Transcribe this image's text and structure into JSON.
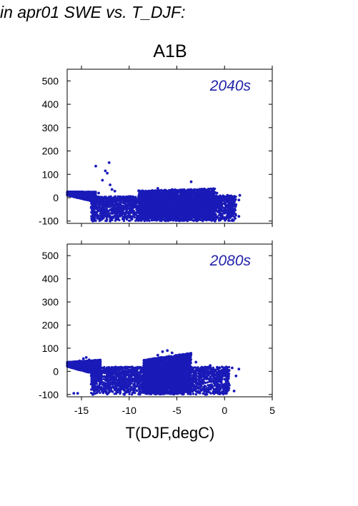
{
  "header": {
    "text": "in apr01 SWE vs. T_DJF:"
  },
  "scenario": "A1B",
  "colors": {
    "points": "#1a1ab8",
    "period_label": "#2222aa"
  },
  "chart_data": [
    {
      "type": "scatter",
      "label": "2040s",
      "xlabel": "T(DJF,degC)",
      "ylabel": "",
      "xlim": [
        -16.5,
        5
      ],
      "ylim": [
        -110,
        550
      ],
      "xticks": [
        -15,
        -10,
        -5,
        0,
        5
      ],
      "yticks": [
        -100,
        0,
        100,
        200,
        300,
        400,
        500
      ],
      "grid": false,
      "show_xtick_labels": false,
      "points": [
        [
          -16.2,
          22
        ],
        [
          -15.8,
          22
        ],
        [
          -15.2,
          23
        ],
        [
          -14.8,
          24
        ],
        [
          -14.3,
          22
        ],
        [
          -13.5,
          135
        ],
        [
          -13.2,
          20
        ],
        [
          -12.8,
          75
        ],
        [
          -12.5,
          115
        ],
        [
          -12.3,
          105
        ],
        [
          -12.1,
          150
        ],
        [
          -12.0,
          55
        ],
        [
          -11.8,
          35
        ],
        [
          -11.5,
          28
        ],
        [
          -13.8,
          -100
        ],
        [
          -12.0,
          -100
        ],
        [
          -9.0,
          30
        ],
        [
          -7.0,
          40
        ],
        [
          -5.5,
          35
        ],
        [
          -3.5,
          68
        ],
        [
          -2.5,
          30
        ],
        [
          -1.5,
          25
        ],
        [
          -0.8,
          20
        ],
        [
          0.3,
          10
        ],
        [
          1.5,
          -10
        ],
        [
          1.6,
          10
        ],
        [
          1.2,
          -30
        ],
        [
          0.5,
          -60
        ],
        [
          1.5,
          -80
        ],
        [
          -1.0,
          -100
        ]
      ],
      "dense_regions": [
        {
          "x": [
            -14.0,
            1.2
          ],
          "y_bottom": [
            -100,
            -100
          ],
          "y_top": [
            5,
            10
          ]
        },
        {
          "x": [
            -9.0,
            -1.0
          ],
          "y_bottom": [
            -100,
            -100
          ],
          "y_top": [
            30,
            40
          ]
        },
        {
          "x": [
            -16.5,
            -13.5
          ],
          "y_bottom": [
            10,
            -20
          ],
          "y_top": [
            26,
            25
          ]
        }
      ]
    },
    {
      "type": "scatter",
      "label": "2080s",
      "xlabel": "T(DJF,degC)",
      "ylabel": "",
      "xlim": [
        -16.5,
        5
      ],
      "ylim": [
        -110,
        550
      ],
      "xticks": [
        -15,
        -10,
        -5,
        0,
        5
      ],
      "yticks": [
        -100,
        0,
        100,
        200,
        300,
        400,
        500
      ],
      "grid": false,
      "show_xtick_labels": true,
      "points": [
        [
          -16.2,
          35
        ],
        [
          -15.8,
          40
        ],
        [
          -15.2,
          45
        ],
        [
          -14.8,
          55
        ],
        [
          -14.5,
          60
        ],
        [
          -14.2,
          50
        ],
        [
          -15.8,
          -95
        ],
        [
          -15.4,
          -95
        ],
        [
          -13.8,
          -100
        ],
        [
          -6.5,
          85
        ],
        [
          -6.0,
          90
        ],
        [
          -5.5,
          80
        ],
        [
          -7.0,
          70
        ],
        [
          -4.5,
          55
        ],
        [
          -3.0,
          40
        ],
        [
          -1.5,
          25
        ],
        [
          -0.5,
          15
        ],
        [
          0.8,
          15
        ],
        [
          1.2,
          -20
        ],
        [
          1.5,
          10
        ],
        [
          0.5,
          -60
        ],
        [
          1.0,
          -85
        ],
        [
          0.2,
          -95
        ],
        [
          -2.0,
          -100
        ],
        [
          -10.5,
          -100
        ]
      ],
      "dense_regions": [
        {
          "x": [
            -14.0,
            0.5
          ],
          "y_bottom": [
            -100,
            -100
          ],
          "y_top": [
            20,
            20
          ]
        },
        {
          "x": [
            -8.5,
            -3.5
          ],
          "y_bottom": [
            -100,
            -100
          ],
          "y_top": [
            50,
            80
          ]
        },
        {
          "x": [
            -16.5,
            -13.0
          ],
          "y_bottom": [
            20,
            -20
          ],
          "y_top": [
            40,
            50
          ]
        }
      ]
    }
  ]
}
